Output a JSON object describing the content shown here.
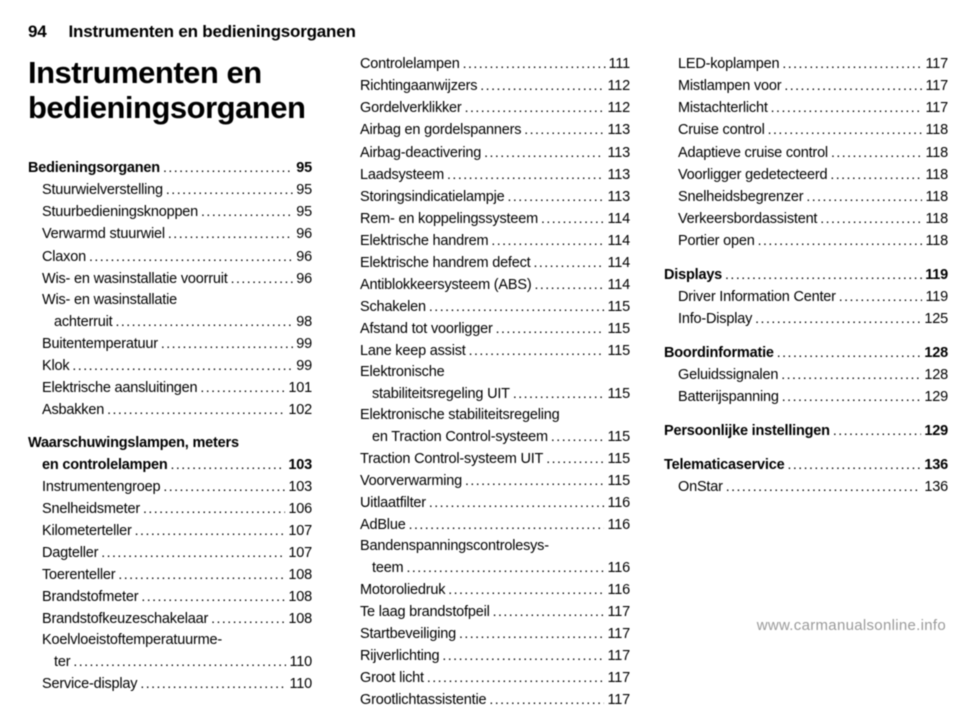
{
  "page_number": "94",
  "running_head": "Instrumenten en bedieningsorganen",
  "chapter_title_l1": "Instrumenten en",
  "chapter_title_l2": "bedieningsorganen",
  "watermark": "www.carmanualsonline.info",
  "col1": [
    {
      "label": "Bedieningsorganen",
      "page": "95",
      "bold": true
    },
    {
      "label": "Stuurwielverstelling",
      "page": "95",
      "indent": 1
    },
    {
      "label": "Stuurbedieningsknoppen",
      "page": "95",
      "indent": 1
    },
    {
      "label": "Verwarmd stuurwiel",
      "page": "96",
      "indent": 1
    },
    {
      "label": "Claxon",
      "page": "96",
      "indent": 1
    },
    {
      "label": "Wis- en wasinstallatie voorruit",
      "page": "96",
      "indent": 1
    },
    {
      "label": "Wis- en wasinstallatie\nachterruit",
      "page": "98",
      "indent": 2
    },
    {
      "label": "Buitentemperatuur",
      "page": "99",
      "indent": 1
    },
    {
      "label": "Klok",
      "page": "99",
      "indent": 1
    },
    {
      "label": "Elektrische aansluitingen",
      "page": "101",
      "indent": 1
    },
    {
      "label": "Asbakken",
      "page": "102",
      "indent": 1
    },
    {
      "gap": true
    },
    {
      "label": "Waarschuwingslampen, meters\nen controlelampen",
      "page": "103",
      "bold": true,
      "indent": 2,
      "toplevel": true
    },
    {
      "label": "Instrumentengroep",
      "page": "103",
      "indent": 1
    },
    {
      "label": "Snelheidsmeter",
      "page": "106",
      "indent": 1
    },
    {
      "label": "Kilometerteller",
      "page": "107",
      "indent": 1
    },
    {
      "label": "Dagteller",
      "page": "107",
      "indent": 1
    },
    {
      "label": "Toerenteller",
      "page": "108",
      "indent": 1
    },
    {
      "label": "Brandstofmeter",
      "page": "108",
      "indent": 1
    },
    {
      "label": "Brandstofkeuzeschakelaar",
      "page": "108",
      "indent": 1
    },
    {
      "label": "Koelvloeistoftemperatuurme-\nter",
      "page": "110",
      "indent": 2
    },
    {
      "label": "Service-display",
      "page": "110",
      "indent": 1
    }
  ],
  "col2": [
    {
      "label": "Controlelampen",
      "page": "111",
      "indent": 1
    },
    {
      "label": "Richtingaanwijzers",
      "page": "112",
      "indent": 1
    },
    {
      "label": "Gordelverklikker",
      "page": "112",
      "indent": 1
    },
    {
      "label": "Airbag en gordelspanners",
      "page": "113",
      "indent": 1
    },
    {
      "label": "Airbag-deactivering",
      "page": "113",
      "indent": 1
    },
    {
      "label": "Laadsysteem",
      "page": "113",
      "indent": 1
    },
    {
      "label": "Storingsindicatielampje",
      "page": "113",
      "indent": 1
    },
    {
      "label": "Rem- en koppelingssysteem",
      "page": "114",
      "indent": 1
    },
    {
      "label": "Elektrische handrem",
      "page": "114",
      "indent": 1
    },
    {
      "label": "Elektrische handrem defect",
      "page": "114",
      "indent": 1
    },
    {
      "label": "Antiblokkeersysteem (ABS)",
      "page": "114",
      "indent": 1
    },
    {
      "label": "Schakelen",
      "page": "115",
      "indent": 1
    },
    {
      "label": "Afstand tot voorligger",
      "page": "115",
      "indent": 1
    },
    {
      "label": "Lane keep assist",
      "page": "115",
      "indent": 1
    },
    {
      "label": "Elektronische\nstabiliteitsregeling UIT",
      "page": "115",
      "indent": 2
    },
    {
      "label": "Elektronische stabiliteitsregeling\nen Traction Control-systeem",
      "page": "115",
      "indent": 2
    },
    {
      "label": "Traction Control-systeem UIT",
      "page": "115",
      "indent": 1
    },
    {
      "label": "Voorverwarming",
      "page": "115",
      "indent": 1
    },
    {
      "label": "Uitlaatfilter",
      "page": "116",
      "indent": 1
    },
    {
      "label": "AdBlue",
      "page": "116",
      "indent": 1
    },
    {
      "label": "Bandenspanningscontrolesys-\nteem",
      "page": "116",
      "indent": 2
    },
    {
      "label": "Motoroliedruk",
      "page": "116",
      "indent": 1
    },
    {
      "label": "Te laag brandstofpeil",
      "page": "117",
      "indent": 1
    },
    {
      "label": "Startbeveiliging",
      "page": "117",
      "indent": 1
    },
    {
      "label": "Rijverlichting",
      "page": "117",
      "indent": 1
    },
    {
      "label": "Groot licht",
      "page": "117",
      "indent": 1
    },
    {
      "label": "Grootlichtassistentie",
      "page": "117",
      "indent": 1
    }
  ],
  "col3": [
    {
      "label": "LED-koplampen",
      "page": "117",
      "indent": 1
    },
    {
      "label": "Mistlampen voor",
      "page": "117",
      "indent": 1
    },
    {
      "label": "Mistachterlicht",
      "page": "117",
      "indent": 1
    },
    {
      "label": "Cruise control",
      "page": "118",
      "indent": 1
    },
    {
      "label": "Adaptieve cruise control",
      "page": "118",
      "indent": 1
    },
    {
      "label": "Voorligger gedetecteerd",
      "page": "118",
      "indent": 1
    },
    {
      "label": "Snelheidsbegrenzer",
      "page": "118",
      "indent": 1
    },
    {
      "label": "Verkeersbordassistent",
      "page": "118",
      "indent": 1
    },
    {
      "label": "Portier open",
      "page": "118",
      "indent": 1
    },
    {
      "gap": true
    },
    {
      "label": "Displays",
      "page": "119",
      "bold": true
    },
    {
      "label": "Driver Information Center",
      "page": "119",
      "indent": 1
    },
    {
      "label": "Info-Display",
      "page": "125",
      "indent": 1
    },
    {
      "gap": true
    },
    {
      "label": "Boordinformatie",
      "page": "128",
      "bold": true
    },
    {
      "label": "Geluidssignalen",
      "page": "128",
      "indent": 1
    },
    {
      "label": "Batterijspanning",
      "page": "129",
      "indent": 1
    },
    {
      "gap": true
    },
    {
      "label": "Persoonlijke instellingen",
      "page": "129",
      "bold": true
    },
    {
      "gap": true
    },
    {
      "label": "Telematicaservice",
      "page": "136",
      "bold": true
    },
    {
      "label": "OnStar",
      "page": "136",
      "indent": 1
    }
  ]
}
